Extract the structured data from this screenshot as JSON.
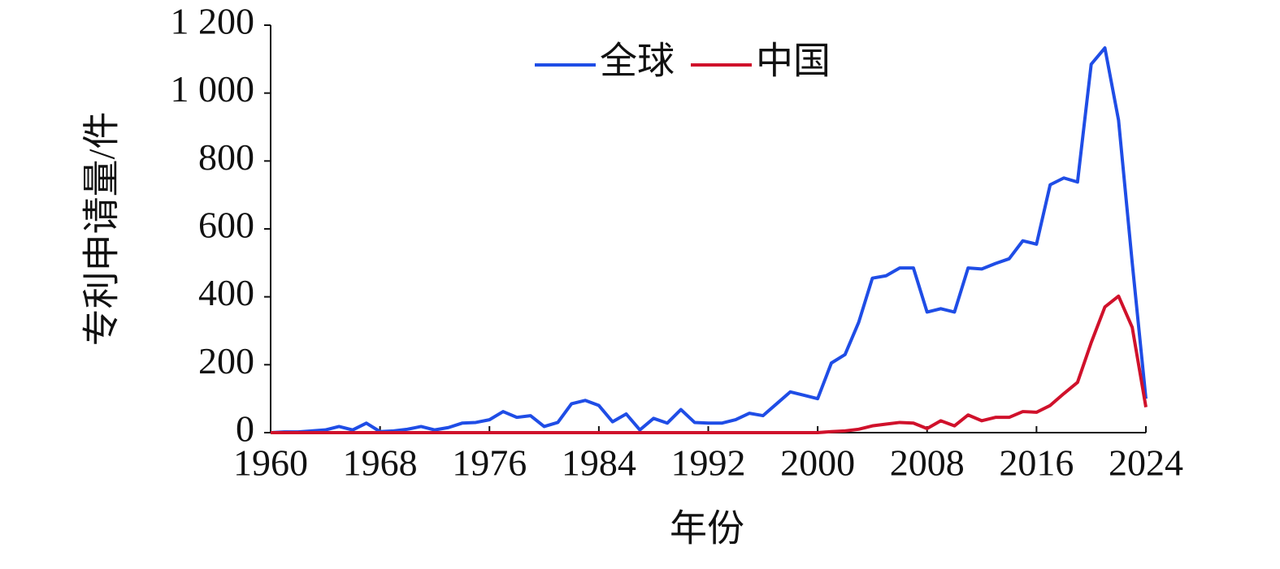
{
  "chart_data": {
    "type": "line",
    "x_label": "年份",
    "y_label": "专利申请量/件",
    "x": [
      1960,
      1961,
      1962,
      1963,
      1964,
      1965,
      1966,
      1967,
      1968,
      1969,
      1970,
      1971,
      1972,
      1973,
      1974,
      1975,
      1976,
      1977,
      1978,
      1979,
      1980,
      1981,
      1982,
      1983,
      1984,
      1985,
      1986,
      1987,
      1988,
      1989,
      1990,
      1991,
      1992,
      1993,
      1994,
      1995,
      1996,
      1997,
      1998,
      1999,
      2000,
      2001,
      2002,
      2003,
      2004,
      2005,
      2006,
      2007,
      2008,
      2009,
      2010,
      2011,
      2012,
      2013,
      2014,
      2015,
      2016,
      2017,
      2018,
      2019,
      2020,
      2021,
      2022,
      2023,
      2024
    ],
    "series": [
      {
        "name": "全球",
        "color": "#1f4de6",
        "values": [
          0,
          2,
          2,
          5,
          8,
          18,
          8,
          28,
          3,
          5,
          10,
          18,
          8,
          15,
          28,
          30,
          38,
          62,
          45,
          50,
          18,
          30,
          85,
          95,
          80,
          32,
          55,
          8,
          42,
          28,
          68,
          30,
          28,
          28,
          38,
          57,
          50,
          85,
          120,
          110,
          100,
          205,
          230,
          325,
          455,
          462,
          485,
          485,
          355,
          365,
          355,
          485,
          482,
          498,
          512,
          565,
          555,
          730,
          750,
          738,
          1085,
          1133,
          920,
          500,
          100
        ]
      },
      {
        "name": "中国",
        "color": "#d0112b",
        "values": [
          0,
          0,
          0,
          0,
          0,
          0,
          0,
          0,
          0,
          0,
          0,
          0,
          0,
          0,
          0,
          0,
          0,
          0,
          0,
          0,
          0,
          0,
          0,
          0,
          0,
          0,
          0,
          0,
          0,
          0,
          0,
          0,
          0,
          0,
          0,
          0,
          0,
          0,
          0,
          0,
          0,
          3,
          5,
          10,
          20,
          25,
          30,
          28,
          12,
          35,
          20,
          52,
          35,
          45,
          45,
          62,
          60,
          80,
          115,
          148,
          265,
          370,
          402,
          310,
          75
        ]
      }
    ],
    "xlim": [
      1960,
      2024
    ],
    "xticks": [
      1960,
      1968,
      1976,
      1984,
      1992,
      2000,
      2008,
      2016,
      2024
    ],
    "ylim": [
      0,
      1200
    ],
    "yticks": [
      0,
      200,
      400,
      600,
      800,
      {
        "value": 1000,
        "label": "1 000"
      },
      {
        "value": 1200,
        "label": "1 200"
      }
    ],
    "legend": "top"
  }
}
